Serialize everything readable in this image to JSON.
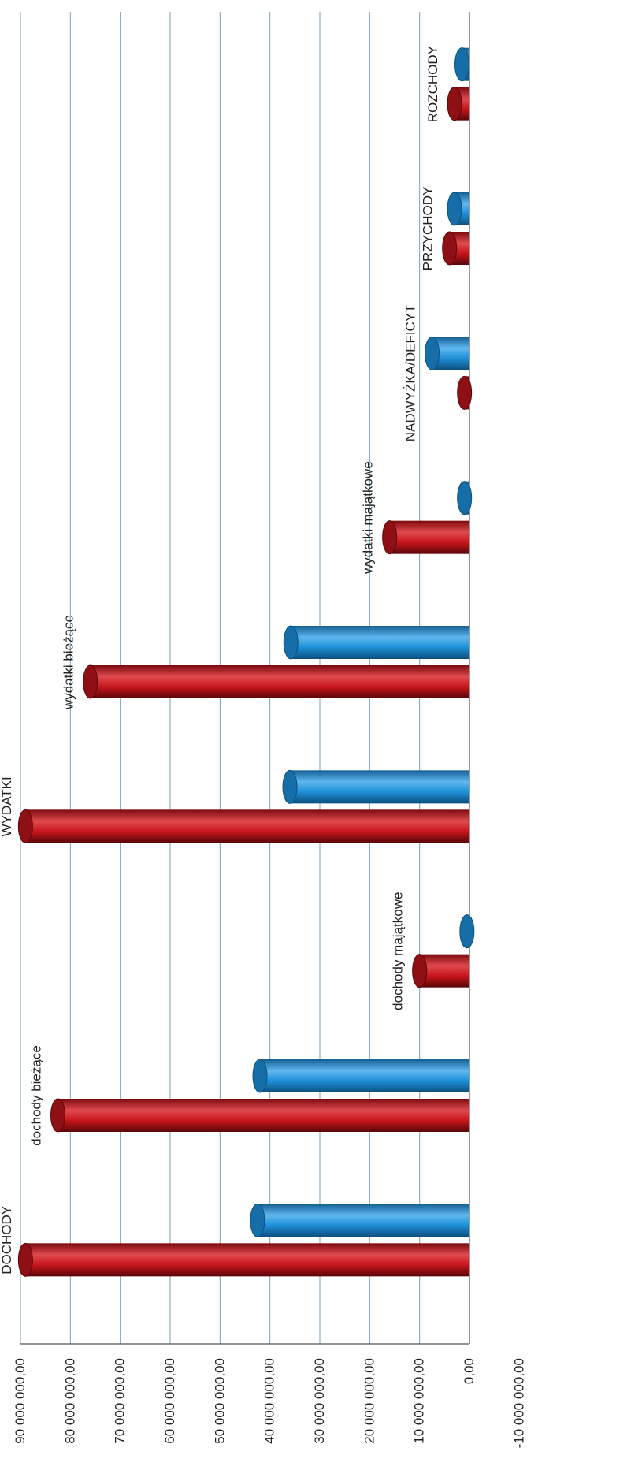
{
  "chart_data": {
    "type": "bar",
    "orientation": "rotated-90-cylinder-3d",
    "categories": [
      "DOCHODY",
      "dochody bieżące",
      "dochody majątkowe",
      "WYDATKI",
      "wydatki bieżące",
      "wydatki majątkowe",
      "NADWYŻKA/DEFICYT",
      "PRZYCHODY",
      "ROZCHODY"
    ],
    "series": [
      {
        "color": "#c8161d",
        "values": [
          89000000,
          82500000,
          10000000,
          89000000,
          76000000,
          16000000,
          1000000,
          4000000,
          3000000
        ]
      },
      {
        "color": "#1e8fd6",
        "values": [
          42500000,
          42000000,
          500000,
          36000000,
          35800000,
          1000000,
          7500000,
          3000000,
          1500000
        ]
      }
    ],
    "axis": {
      "ticks": [
        "0,00",
        "10 000 000,00",
        "20 000 000,00",
        "30 000 000,00",
        "40 000 000,00",
        "50 000 000,00",
        "60 000 000,00",
        "70 000 000,00",
        "80 000 000,00",
        "90 000 000,00"
      ],
      "partial_tick": "-10 000 000,00",
      "ylim": [
        0,
        90000000
      ]
    },
    "grid": true,
    "legend": "none"
  }
}
